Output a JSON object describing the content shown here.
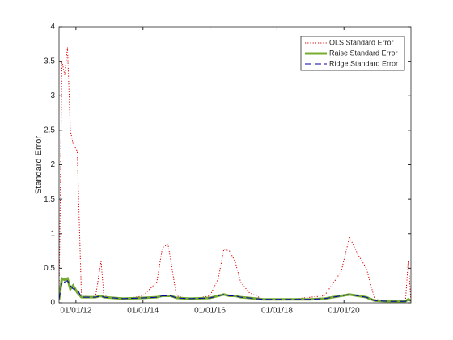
{
  "chart_data": {
    "type": "line",
    "ylabel": "Standard Error",
    "x": [
      "2011-07-01",
      "2011-08-01",
      "2011-09-01",
      "2011-10-01",
      "2011-11-01",
      "2011-12-01",
      "2012-01-15",
      "2012-03-01",
      "2012-08-01",
      "2012-10-01",
      "2012-11-01",
      "2013-06-01",
      "2014-01-01",
      "2014-06-01",
      "2014-08-01",
      "2014-10-01",
      "2014-11-01",
      "2015-01-01",
      "2015-06-01",
      "2016-01-01",
      "2016-04-01",
      "2016-06-01",
      "2016-08-01",
      "2016-10-01",
      "2016-12-01",
      "2017-03-01",
      "2017-08-01",
      "2018-06-01",
      "2019-01-01",
      "2019-06-01",
      "2019-12-01",
      "2020-03-01",
      "2020-06-01",
      "2020-09-01",
      "2020-12-01",
      "2021-06-01",
      "2021-11-01",
      "2021-12-01",
      "2021-12-31"
    ],
    "series": [
      {
        "name": "OLS Standard Error",
        "color": "#d40000",
        "style": "dotted",
        "width": 1,
        "values": [
          0.05,
          3.5,
          3.3,
          3.7,
          2.5,
          2.3,
          2.2,
          0.1,
          0.08,
          0.6,
          0.1,
          0.05,
          0.1,
          0.3,
          0.8,
          0.85,
          0.6,
          0.1,
          0.05,
          0.1,
          0.35,
          0.78,
          0.75,
          0.6,
          0.3,
          0.15,
          0.05,
          0.05,
          0.08,
          0.1,
          0.45,
          0.95,
          0.7,
          0.5,
          0.05,
          0.02,
          0.02,
          0.6,
          0.02
        ]
      },
      {
        "name": "Raise Standard Error",
        "color": "#77ac30",
        "style": "solid",
        "width": 3,
        "values": [
          0.05,
          0.35,
          0.33,
          0.35,
          0.2,
          0.25,
          0.15,
          0.08,
          0.08,
          0.1,
          0.08,
          0.06,
          0.07,
          0.08,
          0.1,
          0.1,
          0.1,
          0.07,
          0.06,
          0.07,
          0.1,
          0.12,
          0.1,
          0.1,
          0.08,
          0.07,
          0.05,
          0.05,
          0.05,
          0.06,
          0.1,
          0.12,
          0.1,
          0.08,
          0.03,
          0.02,
          0.02,
          0.05,
          0.03
        ]
      },
      {
        "name": "Ridge Standard Error",
        "color": "#0000b0",
        "style": "dashed",
        "width": 1,
        "values": [
          0.05,
          0.3,
          0.3,
          0.32,
          0.25,
          0.2,
          0.2,
          0.08,
          0.08,
          0.1,
          0.08,
          0.06,
          0.07,
          0.08,
          0.1,
          0.1,
          0.1,
          0.07,
          0.06,
          0.07,
          0.1,
          0.12,
          0.1,
          0.1,
          0.08,
          0.07,
          0.05,
          0.05,
          0.05,
          0.06,
          0.1,
          0.12,
          0.1,
          0.08,
          0.03,
          0.02,
          0.02,
          0.05,
          0.03
        ]
      }
    ],
    "xlim": [
      "2011-07-01",
      "2021-12-31"
    ],
    "xticks": [
      {
        "value": "2012-01-01",
        "label": "01/01/12"
      },
      {
        "value": "2014-01-01",
        "label": "01/01/14"
      },
      {
        "value": "2016-01-01",
        "label": "01/01/16"
      },
      {
        "value": "2018-01-01",
        "label": "01/01/18"
      },
      {
        "value": "2020-01-01",
        "label": "01/01/20"
      }
    ],
    "ylim": [
      0,
      4
    ],
    "yticks": [
      0,
      0.5,
      1,
      1.5,
      2,
      2.5,
      3,
      3.5,
      4
    ],
    "legend": "northeast"
  }
}
